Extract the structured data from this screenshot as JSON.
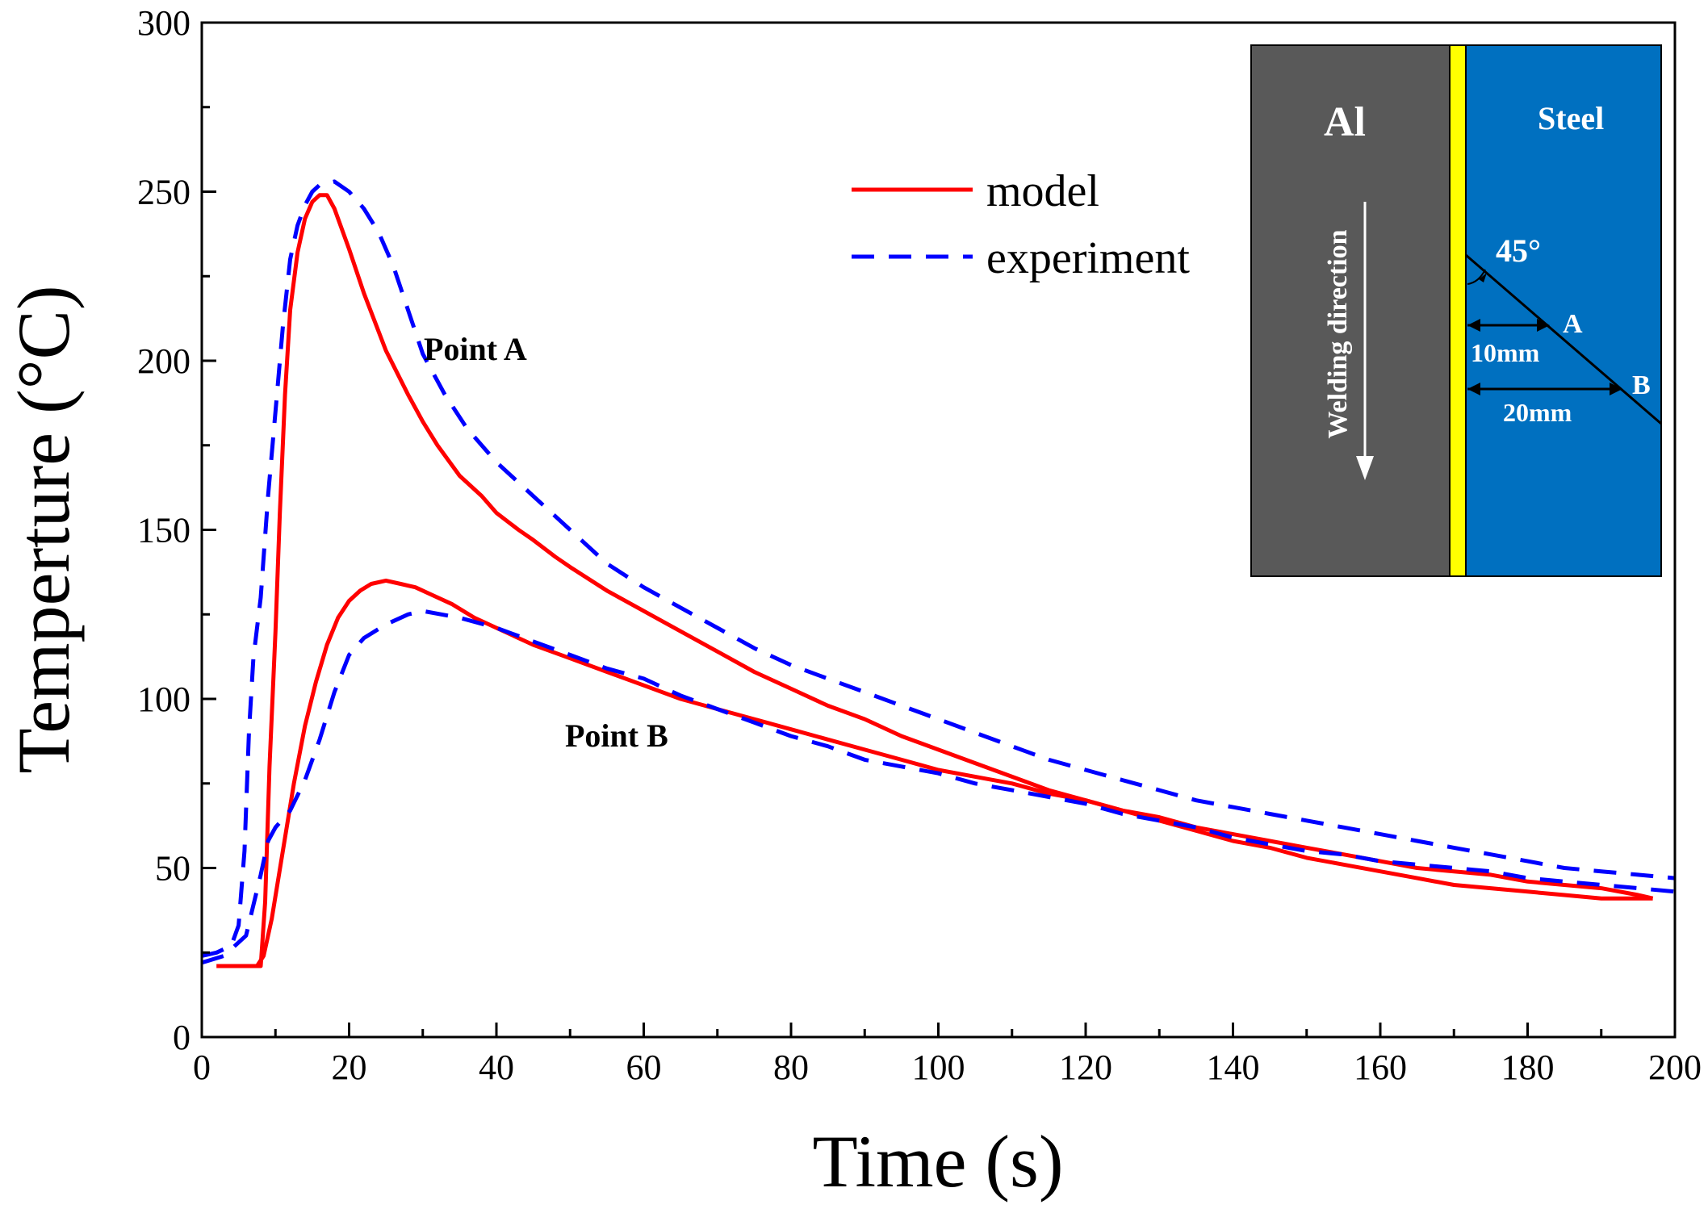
{
  "chart_data": {
    "type": "line",
    "title": "",
    "xlabel": "Time (s)",
    "ylabel": "Temperture (°C)",
    "xlim": [
      0,
      200
    ],
    "ylim": [
      0,
      300
    ],
    "xticks": [
      0,
      20,
      40,
      60,
      80,
      100,
      120,
      140,
      160,
      180,
      200
    ],
    "xticks_minor_step": 10,
    "yticks": [
      0,
      50,
      100,
      150,
      200,
      250,
      300
    ],
    "yticks_minor_step": 25,
    "grid": false,
    "legend": {
      "position": "top-center",
      "entries": [
        "model",
        "experiment"
      ]
    },
    "series": [
      {
        "name": "model",
        "curve": "Point A",
        "color": "#ff0000",
        "style": "solid",
        "x": [
          2,
          8,
          8.6,
          9.2,
          10,
          10.6,
          11.3,
          12,
          13,
          14,
          15,
          16,
          17,
          18,
          20,
          22,
          25,
          28,
          30,
          32,
          35,
          38,
          40,
          43,
          45,
          48,
          50,
          55,
          60,
          65,
          70,
          75,
          80,
          85,
          90,
          95,
          100,
          105,
          110,
          115,
          120,
          125,
          130,
          135,
          140,
          145,
          150,
          155,
          160,
          165,
          170,
          175,
          180,
          185,
          190,
          195,
          197
        ],
        "y": [
          21,
          21,
          40,
          80,
          120,
          155,
          190,
          215,
          232,
          242,
          247,
          249,
          249,
          245,
          233,
          220,
          203,
          190,
          182,
          175,
          166,
          160,
          155,
          150,
          147,
          142,
          139,
          132,
          126,
          120,
          114,
          108,
          103,
          98,
          94,
          89,
          85,
          81,
          77,
          73,
          70,
          67,
          64,
          61,
          58,
          56,
          53,
          51,
          49,
          47,
          45,
          44,
          43,
          42,
          41,
          41,
          41
        ]
      },
      {
        "name": "experiment",
        "curve": "Point A",
        "color": "#0000ff",
        "style": "dashed",
        "x": [
          0,
          2,
          4,
          5,
          5.8,
          6.4,
          7,
          8,
          9,
          10,
          11,
          12,
          13,
          14,
          15,
          16,
          18,
          20,
          22,
          24,
          26,
          28,
          30,
          33,
          36,
          40,
          45,
          50,
          55,
          60,
          65,
          70,
          75,
          80,
          85,
          90,
          95,
          100,
          105,
          110,
          115,
          120,
          125,
          130,
          135,
          140,
          145,
          150,
          155,
          160,
          165,
          170,
          175,
          180,
          185,
          190,
          195,
          200
        ],
        "y": [
          24,
          25,
          27,
          33,
          55,
          90,
          112,
          130,
          160,
          185,
          210,
          230,
          240,
          246,
          250,
          252,
          253,
          250,
          245,
          238,
          228,
          215,
          202,
          190,
          180,
          170,
          160,
          150,
          140,
          133,
          127,
          121,
          115,
          110,
          106,
          102,
          98,
          94,
          90,
          86,
          82,
          79,
          76,
          73,
          70,
          68,
          66,
          64,
          62,
          60,
          58,
          56,
          54,
          52,
          50,
          49,
          48,
          47
        ]
      },
      {
        "name": "model",
        "curve": "Point B",
        "color": "#ff0000",
        "style": "solid",
        "x": [
          2,
          7.5,
          8.4,
          9.5,
          11,
          12.5,
          14,
          15.5,
          17,
          18.5,
          20,
          21.5,
          23,
          25,
          27,
          29,
          31,
          34,
          37,
          40,
          45,
          50,
          55,
          60,
          65,
          70,
          75,
          80,
          85,
          90,
          95,
          100,
          105,
          110,
          115,
          120,
          125,
          130,
          135,
          140,
          145,
          150,
          155,
          160,
          165,
          170,
          175,
          180,
          185,
          190,
          195,
          197
        ],
        "y": [
          21,
          21,
          24,
          35,
          55,
          75,
          92,
          105,
          116,
          124,
          129,
          132,
          134,
          135,
          134,
          133,
          131,
          128,
          124,
          121,
          116,
          112,
          108,
          104,
          100,
          97,
          94,
          91,
          88,
          85,
          82,
          79,
          77,
          75,
          72,
          70,
          67,
          65,
          62,
          60,
          58,
          56,
          54,
          52,
          50,
          49,
          48,
          46,
          45,
          44,
          42,
          41
        ]
      },
      {
        "name": "experiment",
        "curve": "Point B",
        "color": "#0000ff",
        "style": "dashed",
        "x": [
          0,
          3,
          6,
          8,
          9,
          10,
          12,
          14,
          16,
          18,
          20,
          22,
          25,
          28,
          30,
          35,
          40,
          45,
          50,
          55,
          60,
          65,
          70,
          75,
          80,
          85,
          90,
          95,
          100,
          105,
          110,
          115,
          120,
          125,
          130,
          135,
          140,
          145,
          150,
          155,
          160,
          165,
          170,
          175,
          180,
          185,
          190,
          195,
          200
        ],
        "y": [
          22,
          24,
          30,
          48,
          58,
          62,
          67,
          76,
          88,
          102,
          113,
          118,
          122,
          125,
          126,
          124,
          121,
          117,
          113,
          109,
          106,
          101,
          97,
          93,
          89,
          86,
          82,
          80,
          78,
          75,
          73,
          71,
          69,
          66,
          64,
          62,
          59,
          57,
          55,
          54,
          52,
          51,
          50,
          49,
          47,
          46,
          45,
          44,
          43
        ]
      }
    ],
    "annotations": [
      {
        "text": "Point A",
        "x": 47,
        "y": 202
      },
      {
        "text": "Point B",
        "x": 57,
        "y": 88
      }
    ],
    "inset": {
      "left_label": "Al",
      "right_label": "Steel",
      "direction_label": "Welding direction",
      "angle_label": "45°",
      "point_a_label": "A",
      "point_b_label": "B",
      "dist_a_label": "10mm",
      "dist_b_label": "20mm",
      "left_color": "#595959",
      "weld_color": "#ffff00",
      "right_color": "#0070c0"
    }
  }
}
